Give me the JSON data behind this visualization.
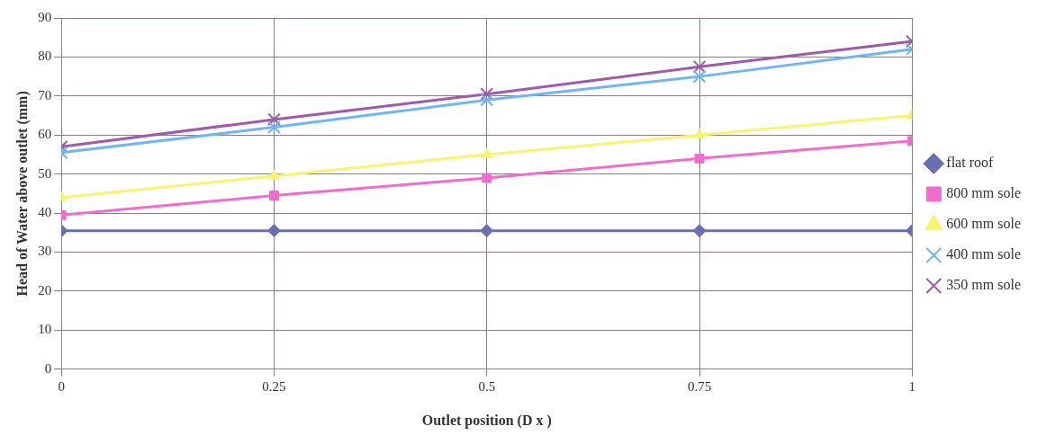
{
  "chart_data": {
    "type": "line",
    "xlabel": "Outlet position (D x )",
    "ylabel": "Head of Water above outlet (mm)",
    "x": [
      0,
      0.25,
      0.5,
      0.75,
      1
    ],
    "xlim": [
      0,
      1
    ],
    "xticks": [
      0,
      0.25,
      0.5,
      0.75,
      1
    ],
    "ylim": [
      0,
      90
    ],
    "yticks": [
      0,
      10,
      20,
      30,
      40,
      50,
      60,
      70,
      80,
      90
    ],
    "grid": true,
    "legend": "right",
    "line_style": "solid",
    "series": [
      {
        "name": "flat roof",
        "color": "#6a6fb5",
        "marker": "diamond",
        "values": [
          35.5,
          35.5,
          35.5,
          35.5,
          35.5
        ]
      },
      {
        "name": "800 mm sole",
        "color": "#f26bcf",
        "marker": "square",
        "values": [
          39.5,
          44.5,
          49,
          54,
          58.5
        ]
      },
      {
        "name": "600 mm sole",
        "color": "#f7f56e",
        "marker": "triangle",
        "values": [
          44,
          49.5,
          55,
          60,
          65
        ]
      },
      {
        "name": "400 mm sole",
        "color": "#6fb6f2",
        "marker": "cross",
        "values": [
          55.5,
          62,
          69,
          75,
          82
        ]
      },
      {
        "name": "350 mm sole",
        "color": "#a25aa6",
        "marker": "cross",
        "values": [
          57,
          64,
          70.5,
          77.5,
          84
        ]
      }
    ]
  }
}
